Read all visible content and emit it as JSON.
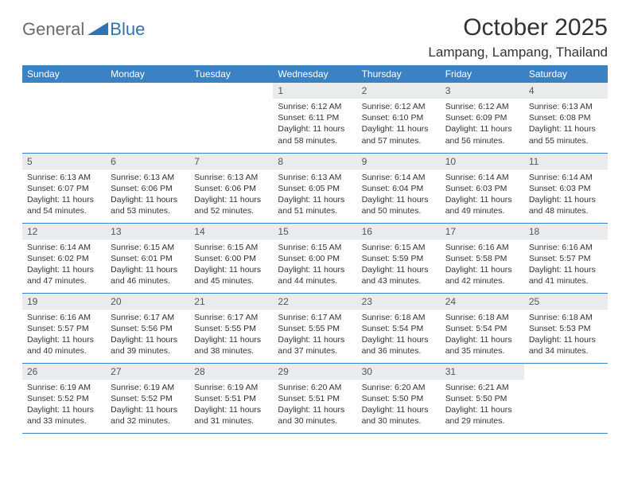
{
  "logo": {
    "general": "General",
    "blue": "Blue",
    "mark_color": "#2f73b5",
    "text_gray": "#6b6b6b"
  },
  "header": {
    "title": "October 2025",
    "location": "Lampang, Lampang, Thailand"
  },
  "colors": {
    "header_bg": "#3b82c4",
    "header_text": "#ffffff",
    "daynum_bg": "#e9ebed",
    "body_text": "#333333",
    "rule": "#3b82c4"
  },
  "days_of_week": [
    "Sunday",
    "Monday",
    "Tuesday",
    "Wednesday",
    "Thursday",
    "Friday",
    "Saturday"
  ],
  "weeks": [
    [
      null,
      null,
      null,
      {
        "n": "1",
        "sr": "Sunrise: 6:12 AM",
        "ss": "Sunset: 6:11 PM",
        "dl": "Daylight: 11 hours and 58 minutes."
      },
      {
        "n": "2",
        "sr": "Sunrise: 6:12 AM",
        "ss": "Sunset: 6:10 PM",
        "dl": "Daylight: 11 hours and 57 minutes."
      },
      {
        "n": "3",
        "sr": "Sunrise: 6:12 AM",
        "ss": "Sunset: 6:09 PM",
        "dl": "Daylight: 11 hours and 56 minutes."
      },
      {
        "n": "4",
        "sr": "Sunrise: 6:13 AM",
        "ss": "Sunset: 6:08 PM",
        "dl": "Daylight: 11 hours and 55 minutes."
      }
    ],
    [
      {
        "n": "5",
        "sr": "Sunrise: 6:13 AM",
        "ss": "Sunset: 6:07 PM",
        "dl": "Daylight: 11 hours and 54 minutes."
      },
      {
        "n": "6",
        "sr": "Sunrise: 6:13 AM",
        "ss": "Sunset: 6:06 PM",
        "dl": "Daylight: 11 hours and 53 minutes."
      },
      {
        "n": "7",
        "sr": "Sunrise: 6:13 AM",
        "ss": "Sunset: 6:06 PM",
        "dl": "Daylight: 11 hours and 52 minutes."
      },
      {
        "n": "8",
        "sr": "Sunrise: 6:13 AM",
        "ss": "Sunset: 6:05 PM",
        "dl": "Daylight: 11 hours and 51 minutes."
      },
      {
        "n": "9",
        "sr": "Sunrise: 6:14 AM",
        "ss": "Sunset: 6:04 PM",
        "dl": "Daylight: 11 hours and 50 minutes."
      },
      {
        "n": "10",
        "sr": "Sunrise: 6:14 AM",
        "ss": "Sunset: 6:03 PM",
        "dl": "Daylight: 11 hours and 49 minutes."
      },
      {
        "n": "11",
        "sr": "Sunrise: 6:14 AM",
        "ss": "Sunset: 6:03 PM",
        "dl": "Daylight: 11 hours and 48 minutes."
      }
    ],
    [
      {
        "n": "12",
        "sr": "Sunrise: 6:14 AM",
        "ss": "Sunset: 6:02 PM",
        "dl": "Daylight: 11 hours and 47 minutes."
      },
      {
        "n": "13",
        "sr": "Sunrise: 6:15 AM",
        "ss": "Sunset: 6:01 PM",
        "dl": "Daylight: 11 hours and 46 minutes."
      },
      {
        "n": "14",
        "sr": "Sunrise: 6:15 AM",
        "ss": "Sunset: 6:00 PM",
        "dl": "Daylight: 11 hours and 45 minutes."
      },
      {
        "n": "15",
        "sr": "Sunrise: 6:15 AM",
        "ss": "Sunset: 6:00 PM",
        "dl": "Daylight: 11 hours and 44 minutes."
      },
      {
        "n": "16",
        "sr": "Sunrise: 6:15 AM",
        "ss": "Sunset: 5:59 PM",
        "dl": "Daylight: 11 hours and 43 minutes."
      },
      {
        "n": "17",
        "sr": "Sunrise: 6:16 AM",
        "ss": "Sunset: 5:58 PM",
        "dl": "Daylight: 11 hours and 42 minutes."
      },
      {
        "n": "18",
        "sr": "Sunrise: 6:16 AM",
        "ss": "Sunset: 5:57 PM",
        "dl": "Daylight: 11 hours and 41 minutes."
      }
    ],
    [
      {
        "n": "19",
        "sr": "Sunrise: 6:16 AM",
        "ss": "Sunset: 5:57 PM",
        "dl": "Daylight: 11 hours and 40 minutes."
      },
      {
        "n": "20",
        "sr": "Sunrise: 6:17 AM",
        "ss": "Sunset: 5:56 PM",
        "dl": "Daylight: 11 hours and 39 minutes."
      },
      {
        "n": "21",
        "sr": "Sunrise: 6:17 AM",
        "ss": "Sunset: 5:55 PM",
        "dl": "Daylight: 11 hours and 38 minutes."
      },
      {
        "n": "22",
        "sr": "Sunrise: 6:17 AM",
        "ss": "Sunset: 5:55 PM",
        "dl": "Daylight: 11 hours and 37 minutes."
      },
      {
        "n": "23",
        "sr": "Sunrise: 6:18 AM",
        "ss": "Sunset: 5:54 PM",
        "dl": "Daylight: 11 hours and 36 minutes."
      },
      {
        "n": "24",
        "sr": "Sunrise: 6:18 AM",
        "ss": "Sunset: 5:54 PM",
        "dl": "Daylight: 11 hours and 35 minutes."
      },
      {
        "n": "25",
        "sr": "Sunrise: 6:18 AM",
        "ss": "Sunset: 5:53 PM",
        "dl": "Daylight: 11 hours and 34 minutes."
      }
    ],
    [
      {
        "n": "26",
        "sr": "Sunrise: 6:19 AM",
        "ss": "Sunset: 5:52 PM",
        "dl": "Daylight: 11 hours and 33 minutes."
      },
      {
        "n": "27",
        "sr": "Sunrise: 6:19 AM",
        "ss": "Sunset: 5:52 PM",
        "dl": "Daylight: 11 hours and 32 minutes."
      },
      {
        "n": "28",
        "sr": "Sunrise: 6:19 AM",
        "ss": "Sunset: 5:51 PM",
        "dl": "Daylight: 11 hours and 31 minutes."
      },
      {
        "n": "29",
        "sr": "Sunrise: 6:20 AM",
        "ss": "Sunset: 5:51 PM",
        "dl": "Daylight: 11 hours and 30 minutes."
      },
      {
        "n": "30",
        "sr": "Sunrise: 6:20 AM",
        "ss": "Sunset: 5:50 PM",
        "dl": "Daylight: 11 hours and 30 minutes."
      },
      {
        "n": "31",
        "sr": "Sunrise: 6:21 AM",
        "ss": "Sunset: 5:50 PM",
        "dl": "Daylight: 11 hours and 29 minutes."
      },
      null
    ]
  ]
}
